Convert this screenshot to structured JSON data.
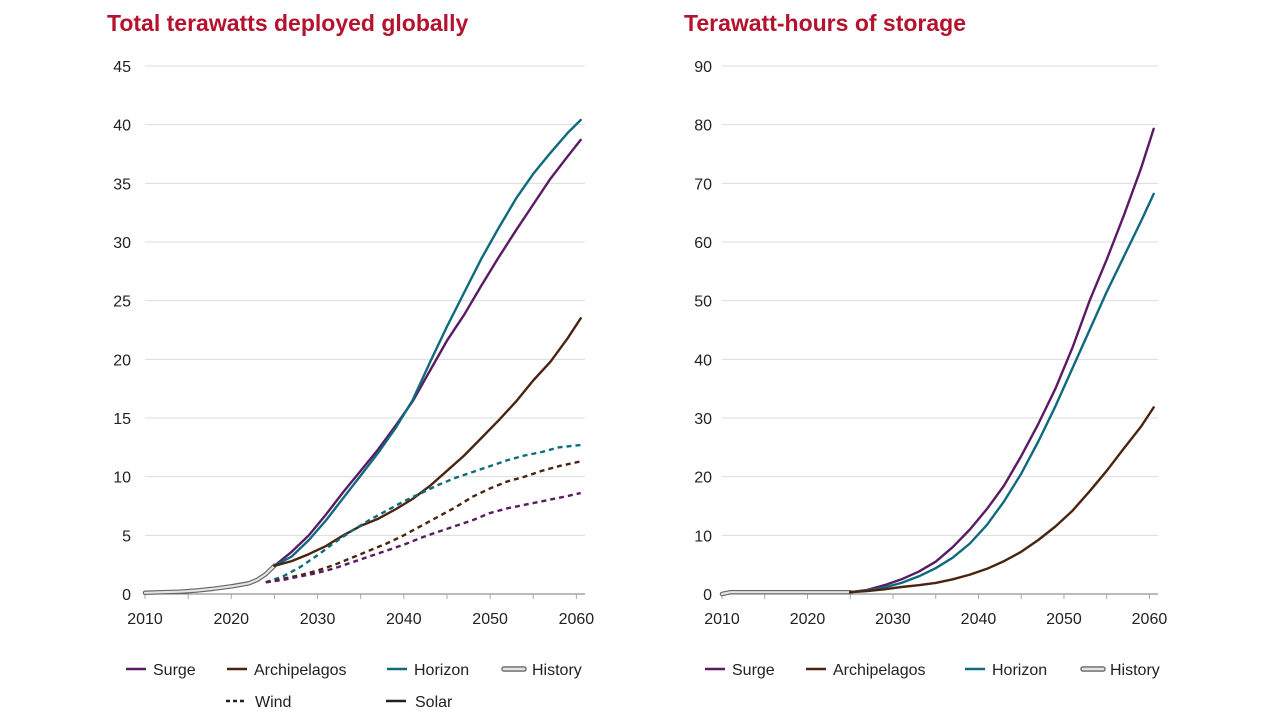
{
  "chart_data": [
    {
      "type": "line",
      "title": "Total terawatts deployed globally",
      "xlabel": "",
      "ylabel": "",
      "xlim": [
        2010,
        2061
      ],
      "ylim": [
        0,
        45
      ],
      "x_ticks": [
        2010,
        2020,
        2030,
        2040,
        2050,
        2060
      ],
      "y_ticks": [
        0,
        5,
        10,
        15,
        20,
        25,
        30,
        35,
        40,
        45
      ],
      "grid": true,
      "legend_position": "bottom",
      "legend": [
        {
          "label": "Surge",
          "color": "#5a1a64",
          "style": "solid"
        },
        {
          "label": "Archipelagos",
          "color": "#4a2410",
          "style": "solid"
        },
        {
          "label": "Horizon",
          "color": "#0e6a7c",
          "style": "solid"
        },
        {
          "label": "History",
          "color": "#b8b8b8",
          "style": "history"
        },
        {
          "label": "Wind",
          "color": "#222222",
          "style": "dashed"
        },
        {
          "label": "Solar",
          "color": "#222222",
          "style": "solid"
        }
      ],
      "series": [
        {
          "name": "History",
          "color": "#b8b8b8",
          "style": "history",
          "x": [
            2010,
            2012,
            2014,
            2016,
            2018,
            2020,
            2022,
            2023,
            2024,
            2025
          ],
          "y": [
            0.1,
            0.15,
            0.2,
            0.3,
            0.45,
            0.65,
            0.9,
            1.2,
            1.7,
            2.4
          ]
        },
        {
          "name": "Surge",
          "color": "#5a1a64",
          "style": "solid",
          "x": [
            2025,
            2027,
            2029,
            2031,
            2033,
            2035,
            2037,
            2039,
            2041,
            2043,
            2045,
            2047,
            2049,
            2051,
            2053,
            2055,
            2057,
            2059,
            2060.5
          ],
          "y": [
            2.4,
            3.6,
            5.0,
            6.8,
            8.7,
            10.5,
            12.3,
            14.3,
            16.4,
            19.0,
            21.6,
            23.8,
            26.3,
            28.7,
            31.0,
            33.2,
            35.4,
            37.3,
            38.7
          ]
        },
        {
          "name": "Horizon",
          "color": "#0e6a7c",
          "style": "solid",
          "x": [
            2025,
            2027,
            2029,
            2031,
            2033,
            2035,
            2037,
            2039,
            2041,
            2043,
            2045,
            2047,
            2049,
            2051,
            2053,
            2055,
            2057,
            2059,
            2060.5
          ],
          "y": [
            2.4,
            3.2,
            4.6,
            6.3,
            8.2,
            10.1,
            12.0,
            14.1,
            16.5,
            19.7,
            22.8,
            25.7,
            28.6,
            31.2,
            33.7,
            35.8,
            37.6,
            39.3,
            40.4
          ]
        },
        {
          "name": "Archipelagos",
          "color": "#4a2410",
          "style": "solid",
          "x": [
            2025,
            2027,
            2029,
            2031,
            2033,
            2035,
            2037,
            2039,
            2041,
            2043,
            2045,
            2047,
            2049,
            2051,
            2053,
            2055,
            2057,
            2059,
            2060.5
          ],
          "y": [
            2.4,
            2.8,
            3.4,
            4.1,
            5.0,
            5.8,
            6.4,
            7.2,
            8.1,
            9.2,
            10.5,
            11.8,
            13.3,
            14.8,
            16.4,
            18.2,
            19.8,
            21.8,
            23.5
          ]
        },
        {
          "name": "Horizon Wind",
          "color": "#0e6a7c",
          "style": "dashed",
          "x": [
            2024,
            2026,
            2028,
            2030,
            2032,
            2034,
            2036,
            2038,
            2040,
            2042,
            2044,
            2046,
            2048,
            2050,
            2052,
            2054,
            2056,
            2058,
            2060.5
          ],
          "y": [
            1.0,
            1.5,
            2.3,
            3.3,
            4.4,
            5.4,
            6.3,
            7.1,
            7.9,
            8.6,
            9.3,
            9.9,
            10.4,
            10.9,
            11.4,
            11.8,
            12.1,
            12.5,
            12.7
          ]
        },
        {
          "name": "Archipelagos Wind",
          "color": "#4a2410",
          "style": "dashed",
          "x": [
            2024,
            2026,
            2028,
            2030,
            2032,
            2034,
            2036,
            2038,
            2040,
            2042,
            2044,
            2046,
            2048,
            2050,
            2052,
            2054,
            2056,
            2058,
            2060.5
          ],
          "y": [
            1.0,
            1.3,
            1.6,
            2.0,
            2.5,
            3.1,
            3.7,
            4.3,
            5.0,
            5.8,
            6.6,
            7.4,
            8.3,
            9.0,
            9.6,
            10.0,
            10.5,
            10.9,
            11.3
          ]
        },
        {
          "name": "Surge Wind",
          "color": "#5a1a64",
          "style": "dashed",
          "x": [
            2024,
            2026,
            2028,
            2030,
            2032,
            2034,
            2036,
            2038,
            2040,
            2042,
            2044,
            2046,
            2048,
            2050,
            2052,
            2054,
            2056,
            2058,
            2060.5
          ],
          "y": [
            1.0,
            1.2,
            1.5,
            1.8,
            2.2,
            2.7,
            3.2,
            3.7,
            4.2,
            4.8,
            5.3,
            5.8,
            6.3,
            6.9,
            7.3,
            7.6,
            7.9,
            8.2,
            8.6
          ]
        }
      ]
    },
    {
      "type": "line",
      "title": "Terawatt-hours of storage",
      "xlabel": "",
      "ylabel": "",
      "xlim": [
        2010,
        2061
      ],
      "ylim": [
        0,
        90
      ],
      "x_ticks": [
        2010,
        2020,
        2030,
        2040,
        2050,
        2060
      ],
      "y_ticks": [
        0,
        10,
        20,
        30,
        40,
        50,
        60,
        70,
        80,
        90
      ],
      "grid": true,
      "legend_position": "bottom",
      "legend": [
        {
          "label": "Surge",
          "color": "#5a1a64",
          "style": "solid"
        },
        {
          "label": "Archipelagos",
          "color": "#4a2410",
          "style": "solid"
        },
        {
          "label": "Horizon",
          "color": "#0e6a7c",
          "style": "solid"
        },
        {
          "label": "History",
          "color": "#b8b8b8",
          "style": "history"
        }
      ],
      "series": [
        {
          "name": "History",
          "color": "#b8b8b8",
          "style": "history",
          "x": [
            2010,
            2011,
            2013,
            2016,
            2020,
            2023,
            2025
          ],
          "y": [
            0.0,
            0.3,
            0.3,
            0.3,
            0.3,
            0.3,
            0.3
          ]
        },
        {
          "name": "Surge",
          "color": "#5a1a64",
          "style": "solid",
          "x": [
            2025,
            2027,
            2029,
            2031,
            2033,
            2035,
            2037,
            2039,
            2041,
            2043,
            2045,
            2047,
            2049,
            2051,
            2053,
            2055,
            2057,
            2059,
            2060.5
          ],
          "y": [
            0.3,
            0.7,
            1.5,
            2.5,
            3.8,
            5.5,
            8.0,
            11.0,
            14.5,
            18.5,
            23.5,
            29.0,
            35.0,
            42.0,
            50.0,
            57.0,
            64.5,
            72.5,
            79.3
          ]
        },
        {
          "name": "Horizon",
          "color": "#0e6a7c",
          "style": "solid",
          "x": [
            2025,
            2027,
            2029,
            2031,
            2033,
            2035,
            2037,
            2039,
            2041,
            2043,
            2045,
            2047,
            2049,
            2051,
            2053,
            2055,
            2057,
            2059,
            2060.5
          ],
          "y": [
            0.3,
            0.6,
            1.1,
            1.9,
            3.0,
            4.4,
            6.2,
            8.6,
            11.8,
            15.8,
            20.5,
            26.0,
            32.0,
            38.5,
            45.0,
            51.5,
            57.5,
            63.5,
            68.2
          ]
        },
        {
          "name": "Archipelagos",
          "color": "#4a2410",
          "style": "solid",
          "x": [
            2025,
            2027,
            2029,
            2031,
            2033,
            2035,
            2037,
            2039,
            2041,
            2043,
            2045,
            2047,
            2049,
            2051,
            2053,
            2055,
            2057,
            2059,
            2060.5
          ],
          "y": [
            0.3,
            0.5,
            0.8,
            1.2,
            1.5,
            1.9,
            2.5,
            3.3,
            4.3,
            5.6,
            7.2,
            9.2,
            11.5,
            14.2,
            17.5,
            21.0,
            24.8,
            28.5,
            31.8
          ]
        }
      ]
    }
  ]
}
